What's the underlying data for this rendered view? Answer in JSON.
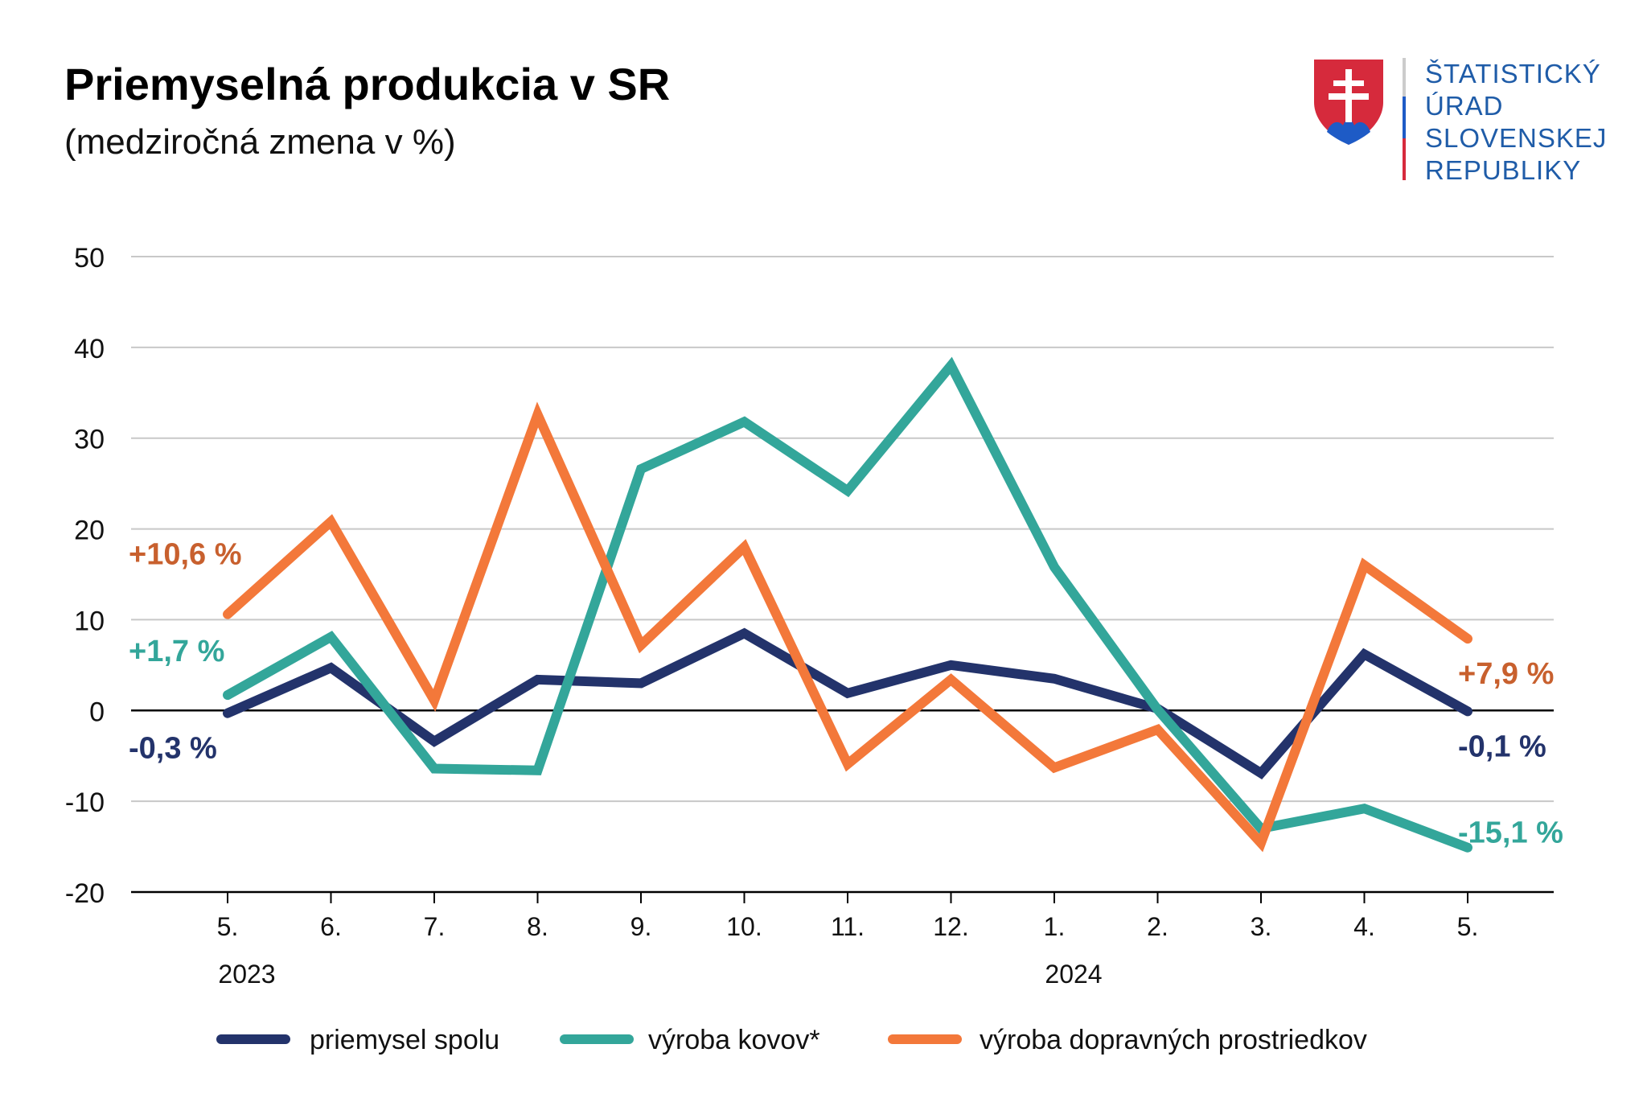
{
  "header": {
    "title": "Priemyselná produkcia v SR",
    "subtitle": "(medziročná zmena v %)"
  },
  "logo": {
    "lines": [
      "ŠTATISTICKÝ",
      "ÚRAD",
      "SLOVENSKEJ",
      "REPUBLIKY"
    ],
    "colors": {
      "text": "#1f5ca8",
      "red": "#d62a3c",
      "blue": "#1e5bc6"
    }
  },
  "chart_data": {
    "type": "line",
    "title": "Priemyselná produkcia v SR",
    "subtitle": "(medziročná zmena v %)",
    "categories": [
      "5.",
      "6.",
      "7.",
      "8.",
      "9.",
      "10.",
      "11.",
      "12.",
      "1.",
      "2.",
      "3.",
      "4.",
      "5."
    ],
    "year_labels": [
      {
        "label": "2023",
        "category_index": 0
      },
      {
        "label": "2024",
        "category_index": 8
      }
    ],
    "ylim": [
      -20,
      50
    ],
    "yticks": [
      -20,
      -10,
      0,
      10,
      20,
      30,
      40,
      50
    ],
    "grid": true,
    "legend_position": "bottom",
    "series": [
      {
        "name": "priemysel spolu",
        "color": "#23336b",
        "values": [
          -0.3,
          4.7,
          -3.4,
          3.4,
          3.0,
          8.5,
          1.9,
          5.0,
          3.5,
          0.2,
          -6.9,
          6.2,
          -0.1
        ]
      },
      {
        "name": "výroba kovov*",
        "color": "#33a69a",
        "values": [
          1.7,
          8.1,
          -6.4,
          -6.6,
          26.6,
          31.8,
          24.2,
          38.0,
          15.8,
          0.1,
          -13.0,
          -10.8,
          -15.1
        ]
      },
      {
        "name": "výroba dopravných prostriedkov",
        "color": "#f3783a",
        "values": [
          10.6,
          20.8,
          1.1,
          32.6,
          7.2,
          18.0,
          -5.9,
          3.4,
          -6.3,
          -2.1,
          -14.6,
          16.0,
          7.9
        ]
      }
    ],
    "annotations": [
      {
        "text": "+10,6 %",
        "series": 2,
        "side": "start",
        "color": "#c8602e"
      },
      {
        "text": "+1,7 %",
        "series": 1,
        "side": "start",
        "color": "#33a69a"
      },
      {
        "text": "-0,3 %",
        "series": 0,
        "side": "start",
        "color": "#23336b"
      },
      {
        "text": "+7,9 %",
        "series": 2,
        "side": "end",
        "color": "#c8602e"
      },
      {
        "text": "-0,1 %",
        "series": 0,
        "side": "end",
        "color": "#23336b"
      },
      {
        "text": "-15,1 %",
        "series": 1,
        "side": "end",
        "color": "#33a69a"
      }
    ]
  }
}
